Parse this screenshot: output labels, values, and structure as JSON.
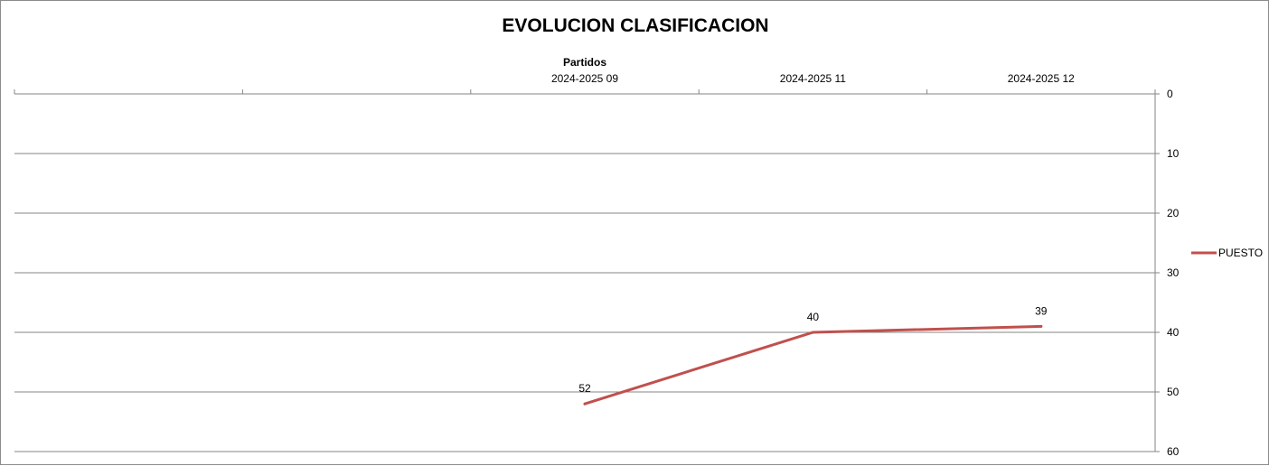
{
  "chart_data": {
    "type": "line",
    "title": "EVOLUCION CLASIFICACION",
    "xlabel": "Partidos",
    "ylabel": "",
    "categories": [
      "",
      "",
      "2024-2025 09",
      "2024-2025 11",
      "2024-2025 12"
    ],
    "series": [
      {
        "name": "PUESTO",
        "values": [
          null,
          null,
          52,
          40,
          39
        ],
        "color": "#c0504d"
      }
    ],
    "ylim": [
      0,
      60
    ],
    "yticks": [
      0,
      10,
      20,
      30,
      40,
      50,
      60
    ],
    "y_reversed": true,
    "y_axis_side": "right",
    "x_axis_position": "top",
    "grid": true,
    "legend": "right"
  }
}
